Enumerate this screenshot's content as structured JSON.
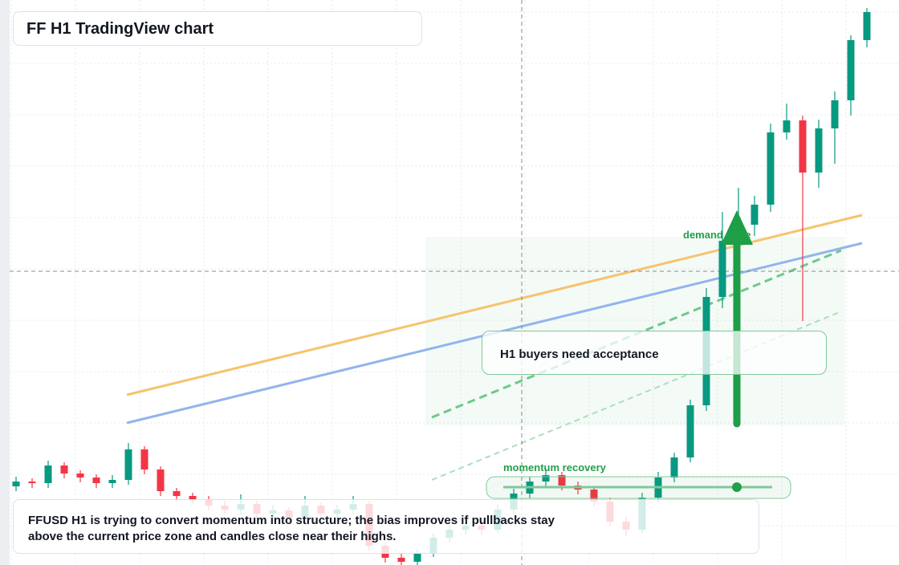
{
  "chart_data": {
    "type": "candlestick",
    "title": "FF H1 TradingView chart",
    "annotations": {
      "demand": "demand node",
      "buyers": "H1 buyers need acceptance",
      "momentum": "momentum recovery"
    },
    "note": [
      "FFUSD H1 is trying to convert momentum into structure; the bias improves if pullbacks stay",
      "above the current price zone and candles close near their highs."
    ],
    "up_color": "#089981",
    "down_color": "#f23645",
    "ylim": [
      0,
      704
    ],
    "grid": true,
    "open": [
      98,
      104,
      102,
      124,
      114,
      109,
      102,
      106,
      144,
      119,
      92,
      86,
      82,
      74,
      69,
      76,
      64,
      68,
      59,
      74,
      64,
      69,
      76,
      24,
      9,
      4,
      14,
      34,
      44,
      49,
      44,
      69,
      89,
      104,
      112,
      99,
      94,
      79,
      54,
      44,
      84,
      109,
      134,
      199,
      334,
      404,
      424,
      449,
      539,
      554,
      489,
      544,
      579,
      654
    ],
    "high": [
      110,
      108,
      130,
      128,
      118,
      113,
      112,
      152,
      148,
      123,
      96,
      90,
      86,
      80,
      88,
      80,
      74,
      72,
      86,
      78,
      75,
      86,
      80,
      28,
      14,
      20,
      40,
      50,
      55,
      54,
      75,
      95,
      110,
      120,
      116,
      104,
      98,
      84,
      60,
      90,
      116,
      140,
      206,
      345,
      440,
      470,
      460,
      550,
      575,
      560,
      555,
      590,
      660,
      694
    ],
    "low": [
      92,
      96,
      96,
      108,
      103,
      96,
      96,
      100,
      113,
      86,
      80,
      76,
      68,
      63,
      63,
      58,
      58,
      53,
      53,
      58,
      58,
      63,
      18,
      3,
      0,
      0,
      10,
      28,
      38,
      38,
      40,
      63,
      83,
      98,
      93,
      88,
      73,
      48,
      36,
      40,
      78,
      103,
      128,
      192,
      320,
      390,
      410,
      440,
      530,
      304,
      470,
      500,
      560,
      645
    ],
    "close": [
      104,
      102,
      124,
      114,
      109,
      102,
      106,
      144,
      119,
      92,
      86,
      82,
      74,
      69,
      76,
      64,
      68,
      59,
      74,
      64,
      69,
      76,
      24,
      9,
      4,
      14,
      34,
      44,
      49,
      44,
      69,
      89,
      104,
      112,
      99,
      94,
      79,
      54,
      44,
      84,
      109,
      134,
      199,
      334,
      404,
      424,
      449,
      539,
      554,
      489,
      544,
      579,
      654,
      689
    ]
  }
}
